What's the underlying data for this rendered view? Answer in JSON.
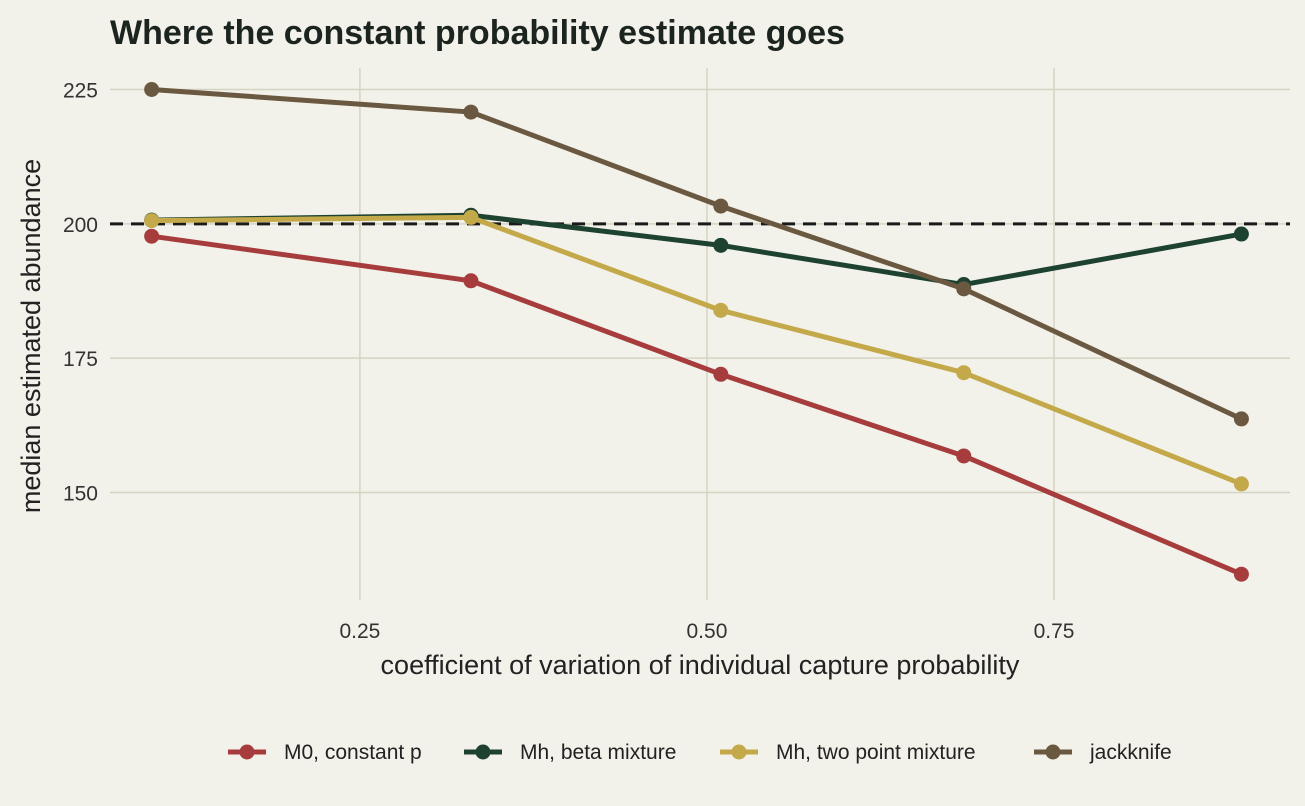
{
  "chart_data": {
    "type": "line",
    "title": "Where the constant probability estimate goes",
    "xlabel": "coefficient of variation of individual capture probability",
    "ylabel": "median estimated abundance",
    "xlim": [
      0.07,
      0.92
    ],
    "ylim": [
      130,
      229
    ],
    "x_ticks": [
      0.25,
      0.5,
      0.75
    ],
    "x_tick_labels": [
      "0.25",
      "0.50",
      "0.75"
    ],
    "y_ticks": [
      150,
      175,
      200,
      225
    ],
    "y_tick_labels": [
      "150",
      "175",
      "200",
      "225"
    ],
    "reference_line": {
      "y": 200,
      "style": "dashed",
      "color": "#1a1a1a"
    },
    "grid": true,
    "legend_position": "bottom",
    "x": [
      0.1,
      0.33,
      0.51,
      0.685,
      0.885
    ],
    "series": [
      {
        "name": "M0, constant p",
        "color": "#a63d3c",
        "values": [
          197.7,
          189.4,
          172.0,
          156.8,
          134.8
        ]
      },
      {
        "name": "Mh, beta mixture",
        "color": "#1e4230",
        "values": [
          200.7,
          201.6,
          196.0,
          188.7,
          198.1
        ]
      },
      {
        "name": "Mh, two point mixture",
        "color": "#c3a94a",
        "values": [
          200.6,
          201.2,
          183.9,
          172.3,
          151.6
        ]
      },
      {
        "name": "jackknife",
        "color": "#6b5840",
        "values": [
          225.0,
          220.8,
          203.3,
          187.9,
          163.7
        ]
      }
    ]
  }
}
